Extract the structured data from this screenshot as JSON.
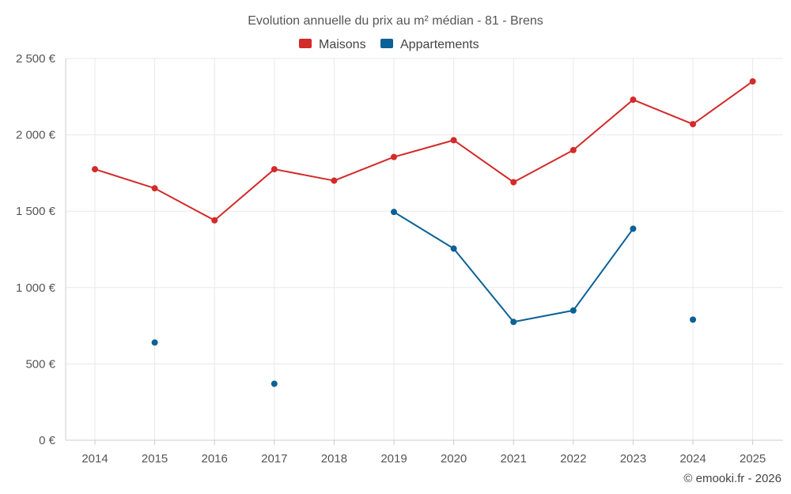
{
  "chart_data": {
    "type": "line",
    "title": "Evolution annuelle du prix au m² médian - 81 - Brens",
    "categories": [
      "2014",
      "2015",
      "2016",
      "2017",
      "2018",
      "2019",
      "2020",
      "2021",
      "2022",
      "2023",
      "2024",
      "2025"
    ],
    "series": [
      {
        "name": "Maisons",
        "color": "#d32a2a",
        "values": [
          1775,
          1650,
          1440,
          1775,
          1700,
          1855,
          1965,
          1690,
          1900,
          2230,
          2070,
          2350
        ]
      },
      {
        "name": "Appartements",
        "color": "#0b6196",
        "values": [
          null,
          640,
          null,
          370,
          null,
          1495,
          1255,
          775,
          850,
          1385,
          null,
          null
        ]
      }
    ],
    "extra_points": [
      {
        "series": "Appartements",
        "category": "2024",
        "value": 790
      }
    ],
    "ylim": [
      0,
      2500
    ],
    "yticks": [
      0,
      500,
      1000,
      1500,
      2000,
      2500
    ],
    "ytick_labels": [
      "0 €",
      "500 €",
      "1 000 €",
      "1 500 €",
      "2 000 €",
      "2 500 €"
    ],
    "legend_position": "top-center",
    "grid": true
  },
  "credit": "© emooki.fr - 2026"
}
